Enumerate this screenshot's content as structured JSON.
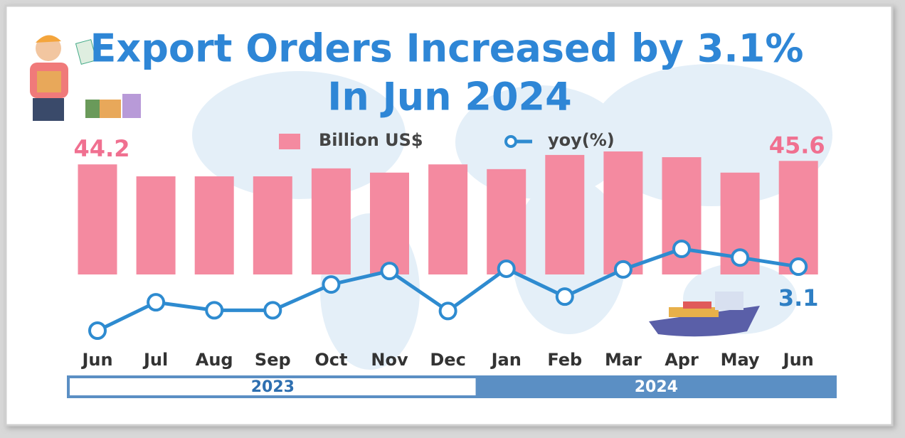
{
  "chart_data": {
    "type": "bar-line",
    "title": "Export Orders Increased by 3.1%",
    "subtitle": "In  Jun 2024",
    "category_groups": [
      {
        "label": "2023",
        "categories": [
          "Jun",
          "Jul",
          "Aug",
          "Sep",
          "Oct",
          "Nov",
          "Dec"
        ]
      },
      {
        "label": "2024",
        "categories": [
          "Jan",
          "Feb",
          "Mar",
          "Apr",
          "May",
          "Jun"
        ]
      }
    ],
    "series": [
      {
        "name": "Billion US$",
        "type": "bar",
        "color": "#f48aa0",
        "values": [
          44.2,
          39.4,
          39.4,
          39.4,
          42.6,
          40.9,
          44.2,
          42.3,
          48.0,
          49.4,
          47.1,
          40.9,
          45.6
        ],
        "value_labels": [
          "44.2",
          null,
          null,
          null,
          null,
          null,
          null,
          null,
          null,
          null,
          null,
          null,
          "45.6"
        ]
      },
      {
        "name": "yoy(%)",
        "type": "line",
        "color": "#2e8bd0",
        "values": [
          -24.9,
          -12.5,
          -16.0,
          -16.0,
          -4.7,
          1.2,
          -16.3,
          2.2,
          -10.0,
          1.9,
          10.9,
          7.1,
          3.1
        ],
        "value_labels": [
          null,
          null,
          null,
          null,
          null,
          null,
          null,
          null,
          null,
          null,
          null,
          null,
          "3.1"
        ]
      }
    ]
  }
}
